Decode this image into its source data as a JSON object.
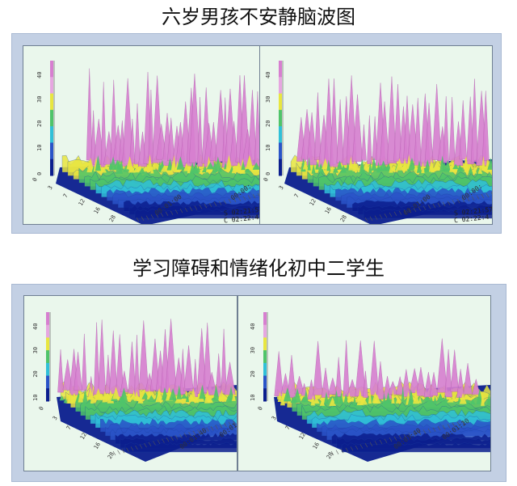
{
  "figure": {
    "section1_title": "六岁男孩不安静脑波图",
    "section2_title": "学习障碍和情绪化初中二学生"
  },
  "panels": {
    "p1": {
      "z_labels": [
        "40",
        "30",
        "20",
        "10",
        "0"
      ],
      "depth_labels": [
        "0",
        "3",
        "7",
        "12",
        "16",
        "28"
      ],
      "time_label": "00:01:00",
      "time_label_2": "00:00:",
      "stamp_s": "S 02:21:57",
      "stamp_c": "C 02:22:41"
    },
    "p2": {
      "z_labels": [
        "40",
        "30",
        "20",
        "10",
        "0"
      ],
      "depth_labels": [
        "0",
        "3",
        "7",
        "12",
        "16",
        "28"
      ],
      "time_label": "00:01:00",
      "time_label_2": "00:00:",
      "stamp_s": "S 02:21:57",
      "stamp_c": "C 02:22:4"
    },
    "p3": {
      "z_labels": [
        "40",
        "30",
        "20",
        "10"
      ],
      "depth_labels": [
        "0",
        "3",
        "7",
        "12",
        "16",
        "28"
      ],
      "time_label": "00:01:40",
      "time_label_2": "00:01:"
    },
    "p4": {
      "z_labels": [
        "40",
        "30",
        "20",
        "10"
      ],
      "depth_labels": [
        "0",
        "3",
        "7",
        "12",
        "16",
        "28"
      ],
      "time_label": "00:01:40",
      "time_label_2": "00:01:20"
    }
  },
  "colors": {
    "frame": "#c3d0e4",
    "panel_bg": "#eaf7ec",
    "peaks": "#d77fd0",
    "yellow": "#e8e640",
    "green": "#4fc46a",
    "cyan": "#30c0d8",
    "blue": "#2a54c8",
    "navy": "#0b1e8e"
  }
}
